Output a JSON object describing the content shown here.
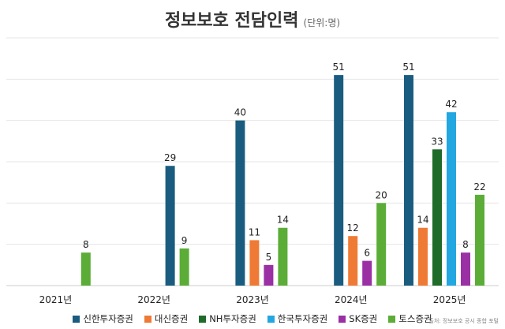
{
  "title": "정보보호 전담인력",
  "unit": "(단위:명)",
  "source": "출처: 정보보호 공시 종합 포털",
  "chart_data": {
    "type": "bar",
    "categories": [
      "2021년",
      "2022년",
      "2023년",
      "2024년",
      "2025년"
    ],
    "ylim": [
      0,
      60
    ],
    "grid": true,
    "legend_position": "bottom",
    "series": [
      {
        "name": "신한투자증권",
        "color": "#1a5c7f",
        "values": [
          null,
          29,
          40,
          51,
          51
        ]
      },
      {
        "name": "대신증권",
        "color": "#ef7a35",
        "values": [
          null,
          null,
          11,
          12,
          14
        ]
      },
      {
        "name": "NH투자증권",
        "color": "#1e6b2a",
        "values": [
          null,
          null,
          null,
          null,
          33
        ]
      },
      {
        "name": "한국투자증권",
        "color": "#22a7e1",
        "values": [
          null,
          null,
          null,
          null,
          42
        ]
      },
      {
        "name": "SK증권",
        "color": "#9b2fa4",
        "values": [
          null,
          null,
          5,
          6,
          8
        ]
      },
      {
        "name": "토스증권",
        "color": "#5bad37",
        "values": [
          8,
          9,
          14,
          20,
          22
        ]
      }
    ]
  }
}
